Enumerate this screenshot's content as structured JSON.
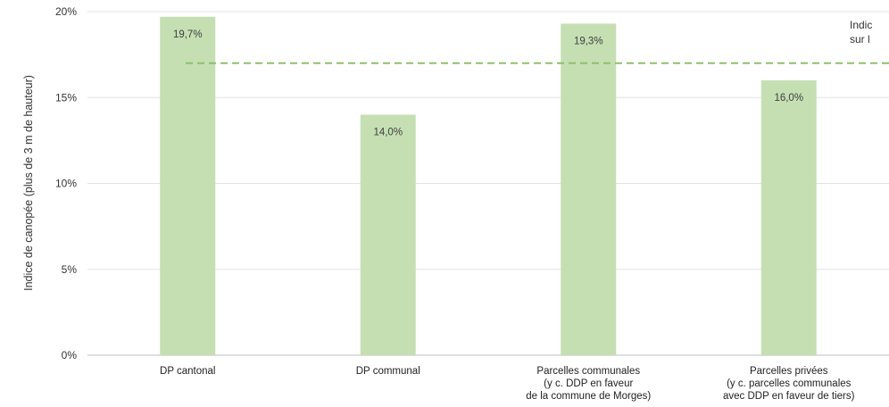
{
  "chart_data": {
    "type": "bar",
    "title": "",
    "xlabel": "",
    "ylabel": "Indice de canopée (plus de 3 m de hauteur)",
    "ylim": [
      0,
      20
    ],
    "yticks": [
      "0%",
      "5%",
      "10%",
      "15%",
      "20%"
    ],
    "ytick_values": [
      0,
      5,
      10,
      15,
      20
    ],
    "grid": true,
    "categories": [
      [
        "DP cantonal"
      ],
      [
        "DP communal"
      ],
      [
        "Parcelles communales",
        "(y c. DDP en faveur",
        "de la commune de Morges)"
      ],
      [
        "Parcelles privées",
        "(y c. parcelles communales",
        "avec DDP en faveur de tiers)"
      ]
    ],
    "values": [
      19.7,
      14.0,
      19.3,
      16.0
    ],
    "data_labels": [
      "19,7%",
      "14,0%",
      "19,3%",
      "16,0%"
    ],
    "bar_color": "#c5dfb3",
    "reference_line": {
      "value": 17.0,
      "color": "#8fbf6e",
      "style": "dashed",
      "label_lines": [
        "Indic",
        "sur l"
      ]
    }
  }
}
